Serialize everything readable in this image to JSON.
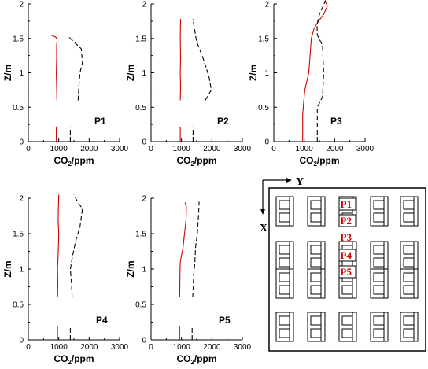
{
  "chart_data": [
    {
      "type": "line",
      "panel": "P1",
      "xlabel": "CO2/ppm",
      "ylabel": "Z/m",
      "xlim": [
        0,
        3000
      ],
      "ylim": [
        0,
        2
      ],
      "xticks": [
        0,
        1000,
        2000,
        3000
      ],
      "yticks": [
        0,
        0.5,
        1,
        1.5,
        2
      ],
      "grid": false,
      "series": [
        {
          "style": "solid",
          "color": "#cc0000",
          "segments": [
            {
              "x": [
                920,
                920
              ],
              "y": [
                0,
                0.22
              ]
            },
            {
              "x": [
                940,
                930,
                920,
                930,
                930,
                950,
                900,
                790,
                740
              ],
              "y": [
                0.6,
                0.8,
                1.0,
                1.2,
                1.4,
                1.48,
                1.52,
                1.54,
                1.55
              ]
            }
          ]
        },
        {
          "style": "dashed",
          "color": "#000000",
          "segments": [
            {
              "x": [
                1380,
                1380
              ],
              "y": [
                0,
                0.22
              ]
            },
            {
              "x": [
                1640,
                1660,
                1700,
                1780,
                1740,
                1500,
                1380,
                1300
              ],
              "y": [
                0.6,
                0.8,
                1.0,
                1.15,
                1.35,
                1.45,
                1.5,
                1.55
              ]
            }
          ]
        }
      ]
    },
    {
      "type": "line",
      "panel": "P2",
      "xlabel": "CO2/ppm",
      "ylabel": "Z/m",
      "xlim": [
        0,
        3000
      ],
      "ylim": [
        0,
        2
      ],
      "xticks": [
        0,
        1000,
        2000,
        3000
      ],
      "yticks": [
        0,
        0.5,
        1,
        1.5,
        2
      ],
      "grid": false,
      "series": [
        {
          "style": "solid",
          "color": "#cc0000",
          "segments": [
            {
              "x": [
                960,
                960
              ],
              "y": [
                0,
                0.22
              ]
            },
            {
              "x": [
                960,
                970,
                960,
                970,
                960,
                970
              ],
              "y": [
                0.6,
                0.8,
                1.0,
                1.2,
                1.5,
                1.78
              ]
            }
          ]
        },
        {
          "style": "dashed",
          "color": "#000000",
          "segments": [
            {
              "x": [
                1380,
                1380
              ],
              "y": [
                0,
                0.22
              ]
            },
            {
              "x": [
                1780,
                1980,
                1900,
                1720,
                1500,
                1420,
                1380
              ],
              "y": [
                0.6,
                0.75,
                0.95,
                1.2,
                1.45,
                1.65,
                1.78
              ]
            }
          ]
        }
      ]
    },
    {
      "type": "line",
      "panel": "P3",
      "xlabel": "CO2/ppm",
      "ylabel": "Z/m",
      "xlim": [
        0,
        3000
      ],
      "ylim": [
        0,
        2
      ],
      "xticks": [
        0,
        1000,
        2000,
        3000
      ],
      "yticks": [
        0,
        0.5,
        1,
        1.5,
        2
      ],
      "grid": false,
      "series": [
        {
          "style": "solid",
          "color": "#cc0000",
          "segments": [
            {
              "x": [
                950,
                950,
                1020,
                1150,
                1200,
                1230,
                1330,
                1470,
                1640,
                1760,
                1680
              ],
              "y": [
                0,
                0.4,
                0.75,
                1.0,
                1.3,
                1.5,
                1.65,
                1.75,
                1.85,
                1.97,
                2.05
              ]
            }
          ]
        },
        {
          "style": "dashed",
          "color": "#000000",
          "segments": [
            {
              "x": [
                1430,
                1430,
                1600,
                1640,
                1600,
                1430,
                1420,
                1500,
                1600,
                1700
              ],
              "y": [
                0,
                0.5,
                0.65,
                1.0,
                1.4,
                1.55,
                1.7,
                1.85,
                1.95,
                2.05
              ]
            }
          ]
        }
      ]
    },
    {
      "type": "line",
      "panel": "P4",
      "xlabel": "CO2/ppm",
      "ylabel": "Z/m",
      "xlim": [
        0,
        3000
      ],
      "ylim": [
        0,
        2
      ],
      "xticks": [
        0,
        1000,
        2000,
        3000
      ],
      "yticks": [
        0,
        0.5,
        1,
        1.5,
        2
      ],
      "grid": false,
      "series": [
        {
          "style": "solid",
          "color": "#cc0000",
          "segments": [
            {
              "x": [
                960,
                960
              ],
              "y": [
                0,
                0.2
              ]
            },
            {
              "x": [
                960,
                970,
                960,
                980,
                1000,
                980,
                990,
                1000
              ],
              "y": [
                0.6,
                0.8,
                1.0,
                1.2,
                1.5,
                1.7,
                1.9,
                2.05
              ]
            }
          ]
        },
        {
          "style": "dashed",
          "color": "#000000",
          "segments": [
            {
              "x": [
                1380,
                1380
              ],
              "y": [
                0,
                0.2
              ]
            },
            {
              "x": [
                1440,
                1420,
                1380,
                1460,
                1560,
                1700,
                1780,
                1620,
                1500
              ],
              "y": [
                0.6,
                0.8,
                1.0,
                1.2,
                1.4,
                1.6,
                1.85,
                1.95,
                2.05
              ]
            }
          ]
        }
      ]
    },
    {
      "type": "line",
      "panel": "P5",
      "xlabel": "CO2/ppm",
      "ylabel": "Z/m",
      "xlim": [
        0,
        3000
      ],
      "ylim": [
        0,
        2
      ],
      "xticks": [
        0,
        1000,
        2000,
        3000
      ],
      "yticks": [
        0,
        0.5,
        1,
        1.5,
        2
      ],
      "grid": false,
      "series": [
        {
          "style": "solid",
          "color": "#cc0000",
          "segments": [
            {
              "x": [
                940,
                940
              ],
              "y": [
                0,
                0.2
              ]
            },
            {
              "x": [
                940,
                950,
                960,
                1050,
                1100,
                1150,
                1160,
                1120
              ],
              "y": [
                0.6,
                0.9,
                1.1,
                1.3,
                1.5,
                1.7,
                1.88,
                1.94
              ]
            }
          ]
        },
        {
          "style": "dashed",
          "color": "#000000",
          "segments": [
            {
              "x": [
                1350,
                1350
              ],
              "y": [
                0,
                0.2
              ]
            },
            {
              "x": [
                1370,
                1400,
                1440,
                1460,
                1520,
                1560,
                1580
              ],
              "y": [
                0.6,
                0.9,
                1.1,
                1.3,
                1.5,
                1.75,
                1.95
              ]
            }
          ]
        }
      ]
    }
  ],
  "axis_text": {
    "x_title": "CO",
    "x_sub": "2",
    "x_rest": "/ppm",
    "y_title": "Z/m",
    "x_tick_labels": [
      "0",
      "1000",
      "2000",
      "3000"
    ],
    "y_tick_labels": [
      "0",
      "0.5",
      "1",
      "1.5",
      "2"
    ]
  },
  "layout": {
    "x_axis_label": "X",
    "y_axis_label": "Y",
    "point_labels": [
      "P1",
      "P2",
      "P3",
      "P4",
      "P5"
    ],
    "label_color": "#d40000"
  }
}
